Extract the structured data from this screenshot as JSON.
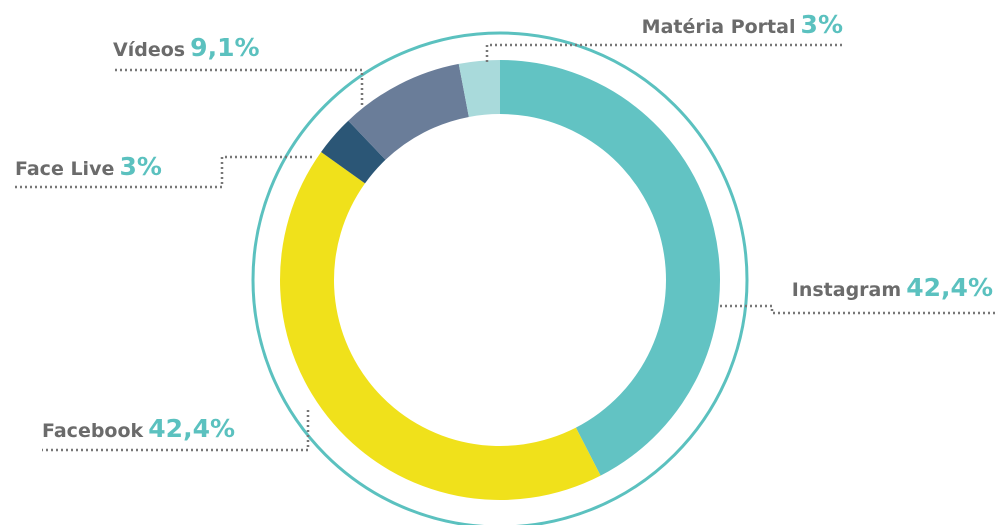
{
  "chart_data": {
    "type": "donut",
    "categories": [
      "Instagram",
      "Facebook",
      "Face Live",
      "Vídeos",
      "Matéria Portal"
    ],
    "values": [
      42.4,
      42.4,
      3,
      9.1,
      3
    ],
    "value_labels": [
      "42,4%",
      "42,4%",
      "3%",
      "9,1%",
      "3%"
    ],
    "colors": [
      "#62c3c3",
      "#f0e11b",
      "#2b5676",
      "#6a7d99",
      "#a9dadb"
    ]
  }
}
